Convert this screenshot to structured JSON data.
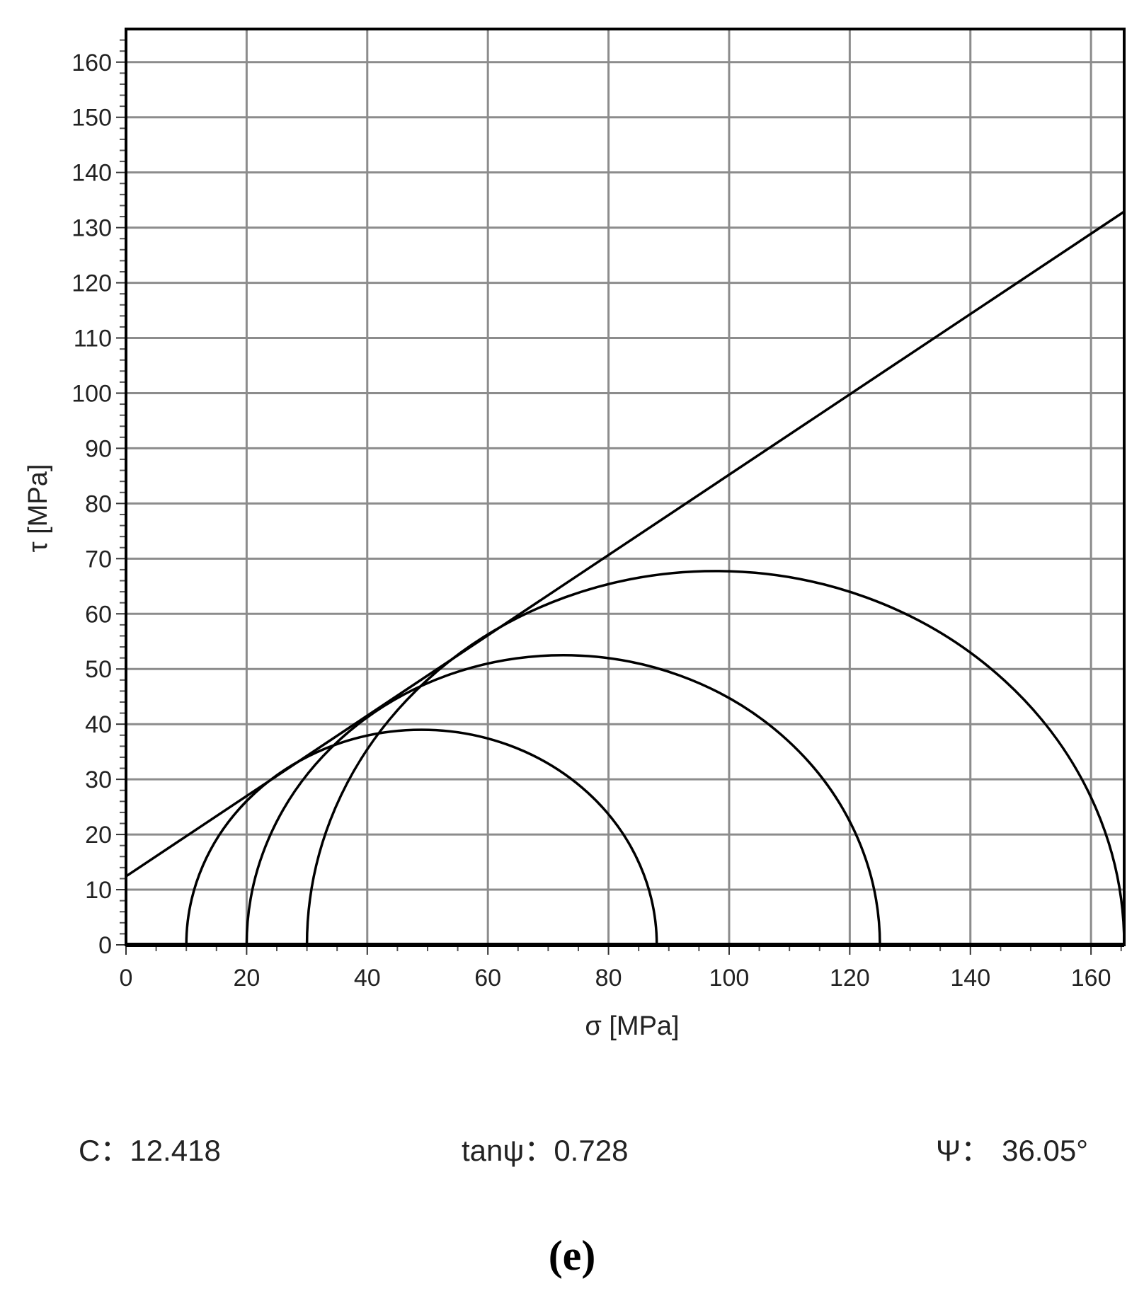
{
  "chart_data": {
    "type": "line",
    "title": "",
    "xlabel": "σ  [MPa]",
    "ylabel": "τ  [MPa]",
    "xlim": [
      0,
      165.5
    ],
    "ylim": [
      0,
      166
    ],
    "xticks": [
      0,
      20,
      40,
      60,
      80,
      100,
      120,
      140,
      160
    ],
    "yticks": [
      0,
      10,
      20,
      30,
      40,
      50,
      60,
      70,
      80,
      90,
      100,
      110,
      120,
      130,
      140,
      150,
      160
    ],
    "grid": true,
    "series": [
      {
        "kind": "mohr-circle",
        "sigma3": 10,
        "sigma1": 88
      },
      {
        "kind": "mohr-circle",
        "sigma3": 20,
        "sigma1": 125
      },
      {
        "kind": "mohr-circle",
        "sigma3": 30,
        "sigma1": 165.5
      },
      {
        "kind": "envelope-line",
        "intercept": 12.418,
        "slope": 0.728
      }
    ],
    "colors": {
      "curves": "#000000",
      "grid": "#8c8c8c"
    }
  },
  "params": {
    "c_label": "C：",
    "c_value": "12.418",
    "tan_label": "tanψ：",
    "tan_value": "0.728",
    "psi_label": "Ψ：",
    "psi_value": "36.05°"
  },
  "caption": "(e)"
}
